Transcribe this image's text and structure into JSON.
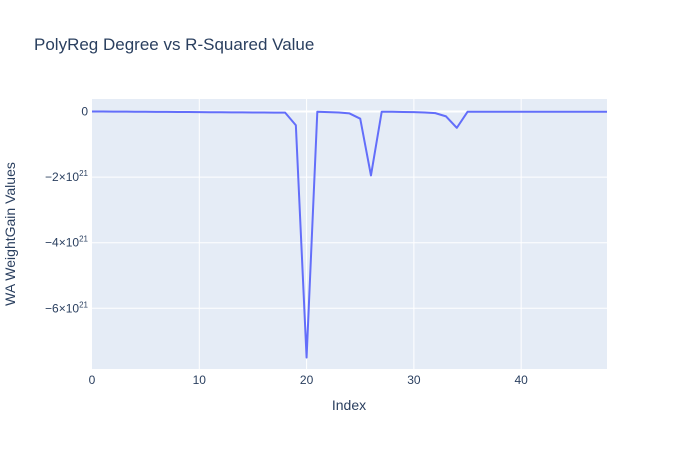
{
  "chart_data": {
    "type": "line",
    "title": "PolyReg Degree vs R-Squared Value",
    "xlabel": "Index",
    "ylabel": "WA WeightGain Values",
    "xlim": [
      0,
      48
    ],
    "ylim": [
      -7.85e+21,
      3.8e+20
    ],
    "x_ticks": [
      0,
      10,
      20,
      30,
      40
    ],
    "x_tick_labels": [
      "0",
      "10",
      "20",
      "30",
      "40"
    ],
    "y_ticks": [
      0,
      -2e+21,
      -4e+21,
      -6e+21
    ],
    "y_tick_labels": [
      {
        "base": "0",
        "exp": ""
      },
      {
        "base": "−2×10",
        "exp": "21"
      },
      {
        "base": "−4×10",
        "exp": "21"
      },
      {
        "base": "−6×10",
        "exp": "21"
      }
    ],
    "grid": true,
    "legend": false,
    "colors": {
      "line": "#636efa",
      "plot_bg": "#e5ecf6",
      "grid": "#ffffff",
      "text": "#2a3f5f"
    },
    "series": [
      {
        "x": [
          0,
          1,
          2,
          3,
          4,
          5,
          6,
          7,
          8,
          9,
          10,
          11,
          12,
          13,
          14,
          15,
          16,
          17,
          18,
          19,
          20,
          21,
          22,
          23,
          24,
          25,
          26,
          27,
          28,
          29,
          30,
          31,
          32,
          33,
          34,
          35,
          36,
          37,
          38,
          39,
          40,
          41,
          42,
          43,
          44,
          45,
          46,
          47,
          48
        ],
        "y": [
          0,
          -2e+18,
          -4e+18,
          -6e+18,
          -8e+18,
          -1e+19,
          -1.2e+19,
          -1.4e+19,
          -1.6e+19,
          -1.8e+19,
          -2e+19,
          -2.2e+19,
          -2.4e+19,
          -2.6e+19,
          -2.8e+19,
          -3e+19,
          -3.2e+19,
          -3.4e+19,
          -3.6e+19,
          -4.2e+20,
          -7.5e+21,
          -1e+19,
          -2e+19,
          -3e+19,
          -6e+19,
          -2.2e+20,
          -1.95e+21,
          -1e+19,
          -1e+19,
          -1.5e+19,
          -2e+19,
          -3e+19,
          -5e+19,
          -1.5e+20,
          -5e+20,
          -1e+19,
          -1e+19,
          -1e+19,
          -1e+19,
          -1e+19,
          -1e+19,
          -1e+19,
          -1e+19,
          -1e+19,
          -1e+19,
          -1e+19,
          -1e+19,
          -1e+19,
          -1e+19
        ]
      }
    ]
  }
}
